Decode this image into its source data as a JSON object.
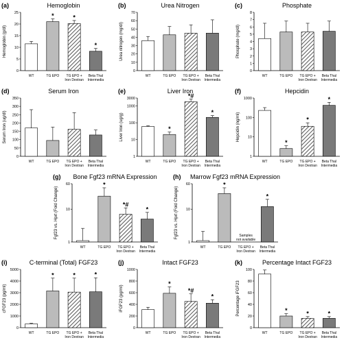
{
  "colors": {
    "WT": "#ffffff",
    "TG EPO": "#bbbbbb",
    "TG EPO + Iron Dextran": "hatched",
    "Beta Thal Intermedia": "#7a7a7a",
    "axis": "#000000"
  },
  "chart_data": [
    {
      "panel": "(a)",
      "title": "Hemoglobin",
      "type": "bar",
      "ylabel": "Hemoglobin (g/dl)",
      "scale": "linear",
      "ylim": [
        0,
        25
      ],
      "yticks": [
        "0",
        "5",
        "10",
        "15",
        "20",
        "25"
      ],
      "categories": [
        "WT",
        "TG EPO",
        "TG EPO + Iron Dextran",
        "Beta Thal Intermedia"
      ],
      "values": [
        11.5,
        21,
        20.2,
        8.3
      ],
      "errors": [
        1,
        1.2,
        1.3,
        1.2
      ],
      "annotations": [
        "",
        "*",
        "*",
        "*"
      ]
    },
    {
      "panel": "(b)",
      "title": "Urea Nitrogen",
      "type": "bar",
      "ylabel": "Urea nitrogen (mg/dl)",
      "scale": "linear",
      "ylim": [
        0,
        70
      ],
      "yticks": [
        "0",
        "10",
        "20",
        "30",
        "40",
        "50",
        "60",
        "70"
      ],
      "categories": [
        "WT",
        "TG EPO",
        "TG EPO + Iron Dextran",
        "Beta Thal Intermedia"
      ],
      "values": [
        36,
        43,
        45,
        45
      ],
      "errors": [
        5,
        10,
        10,
        16
      ],
      "annotations": [
        "",
        "",
        "",
        ""
      ]
    },
    {
      "panel": "(c)",
      "title": "Phosphate",
      "type": "bar",
      "ylabel": "Phosphate (mg/dl)",
      "scale": "linear",
      "ylim": [
        0,
        8
      ],
      "yticks": [
        "0",
        "1",
        "2",
        "3",
        "4",
        "5",
        "6",
        "7",
        "8"
      ],
      "categories": [
        "WT",
        "TG EPO",
        "TG EPO + Iron Dextran",
        "Beta Thal Intermedia"
      ],
      "values": [
        4.4,
        5.3,
        5.3,
        5.4
      ],
      "errors": [
        2.1,
        1.5,
        1.2,
        1.4
      ],
      "annotations": [
        "",
        "",
        "",
        ""
      ]
    },
    {
      "panel": "(d)",
      "title": "Serum Iron",
      "type": "bar",
      "ylabel": "Serum Iron (ug/dl)",
      "scale": "linear",
      "ylim": [
        0,
        350
      ],
      "yticks": [
        "0",
        "50",
        "100",
        "150",
        "200",
        "250",
        "300",
        "350"
      ],
      "categories": [
        "WT",
        "TG EPO",
        "TG EPO + Iron Dextran",
        "Beta Thal Intermedia"
      ],
      "values": [
        170,
        95,
        162,
        128
      ],
      "errors": [
        110,
        80,
        100,
        30
      ],
      "annotations": [
        "",
        "",
        "",
        ""
      ]
    },
    {
      "panel": "(e)",
      "title": "Liver Iron",
      "type": "bar",
      "ylabel": "Liver Iron (ug/g)",
      "scale": "log",
      "ylim": [
        1,
        3000
      ],
      "yticks": [
        "1",
        "10",
        "100",
        "1000",
        "3000"
      ],
      "categories": [
        "WT",
        "TG EPO",
        "TG EPO + Iron Dextran",
        "Beta Thal Intermedia"
      ],
      "values": [
        60,
        20,
        1800,
        210
      ],
      "errors": [
        6,
        8,
        800,
        60
      ],
      "annotations": [
        "",
        "*",
        "*#",
        "*"
      ]
    },
    {
      "panel": "(f)",
      "title": "Hepcidin",
      "type": "bar",
      "ylabel": "Hepcidin (ng/ml)",
      "scale": "log",
      "ylim": [
        1,
        1000
      ],
      "yticks": [
        "1",
        "10",
        "100",
        "1000"
      ],
      "categories": [
        "WT",
        "TG EPO",
        "TG EPO + Iron Dextran",
        "Beta Thal Intermedia"
      ],
      "values": [
        230,
        2.5,
        35,
        420
      ],
      "errors": [
        90,
        1,
        18,
        180
      ],
      "annotations": [
        "",
        "*",
        "*",
        "*"
      ]
    },
    {
      "panel": "(g)",
      "title": "Bone Fgf23 mRNA Expression",
      "type": "bar",
      "ylabel": "Fgf23 vs. Hprt (Fold Change)",
      "scale": "log",
      "ylim": [
        1,
        60
      ],
      "yticks": [
        "1",
        "10",
        "60"
      ],
      "categories": [
        "WT",
        "TG EPO",
        "TG EPO + Iron Dextran",
        "Beta Thal Intermedia"
      ],
      "values": [
        1.1,
        25,
        7,
        5
      ],
      "errors": [
        1.5,
        20,
        4,
        3
      ],
      "annotations": [
        "",
        "*",
        "*#",
        "*"
      ]
    },
    {
      "panel": "(h)",
      "title": "Marrow Fgf23 mRNA Expression",
      "type": "bar",
      "ylabel": "Fgf23 vs. Hprt (Fold Change)",
      "scale": "log",
      "ylim": [
        1,
        60
      ],
      "yticks": [
        "1",
        "10",
        "60"
      ],
      "categories": [
        "WT",
        "TG EPO",
        "TG EPO + Iron Dextran",
        "Beta Thal Intermedia"
      ],
      "values": [
        1.1,
        30,
        null,
        12
      ],
      "errors": [
        1,
        15,
        null,
        8
      ],
      "annotations": [
        "",
        "*",
        "",
        "*"
      ],
      "note": [
        "Samples",
        "not available"
      ]
    },
    {
      "panel": "(i)",
      "title": "C-terminal (Total) FGF23",
      "type": "bar",
      "ylabel": "cFGF23 (pg/ml)",
      "scale": "linear",
      "ylim": [
        0,
        5000
      ],
      "yticks": [
        "0",
        "1000",
        "2000",
        "3000",
        "4000",
        "5000"
      ],
      "categories": [
        "WT",
        "TG EPO",
        "TG EPO + Iron Dextran",
        "Beta Thal Intermedia"
      ],
      "values": [
        320,
        3150,
        3050,
        3080
      ],
      "errors": [
        50,
        1100,
        1200,
        1200
      ],
      "annotations": [
        "",
        "*",
        "*",
        "*"
      ]
    },
    {
      "panel": "(j)",
      "title": "Intact FGF23",
      "type": "bar",
      "ylabel": "iFGF23 (pg/ml)",
      "scale": "linear",
      "ylim": [
        0,
        1000
      ],
      "yticks": [
        "0",
        "200",
        "400",
        "600",
        "800",
        "1000"
      ],
      "categories": [
        "WT",
        "TG EPO",
        "TG EPO + Iron Dextran",
        "Beta Thal Intermedia"
      ],
      "values": [
        310,
        590,
        450,
        420
      ],
      "errors": [
        40,
        110,
        130,
        60
      ],
      "annotations": [
        "",
        "*",
        "*#",
        "*"
      ]
    },
    {
      "panel": "(k)",
      "title": "Percentage Intact FGF23",
      "type": "bar",
      "ylabel": "Percentage iFGF23",
      "scale": "linear",
      "ylim": [
        0,
        100
      ],
      "yticks": [
        "0",
        "20",
        "40",
        "60",
        "80",
        "100"
      ],
      "categories": [
        "WT",
        "TG EPO",
        "TG EPO + Iron Dextran",
        "Beta Thal Intermedia"
      ],
      "values": [
        92,
        20,
        16,
        16
      ],
      "errors": [
        7,
        4,
        3,
        3
      ],
      "annotations": [
        "",
        "*",
        "*",
        "*"
      ]
    }
  ]
}
